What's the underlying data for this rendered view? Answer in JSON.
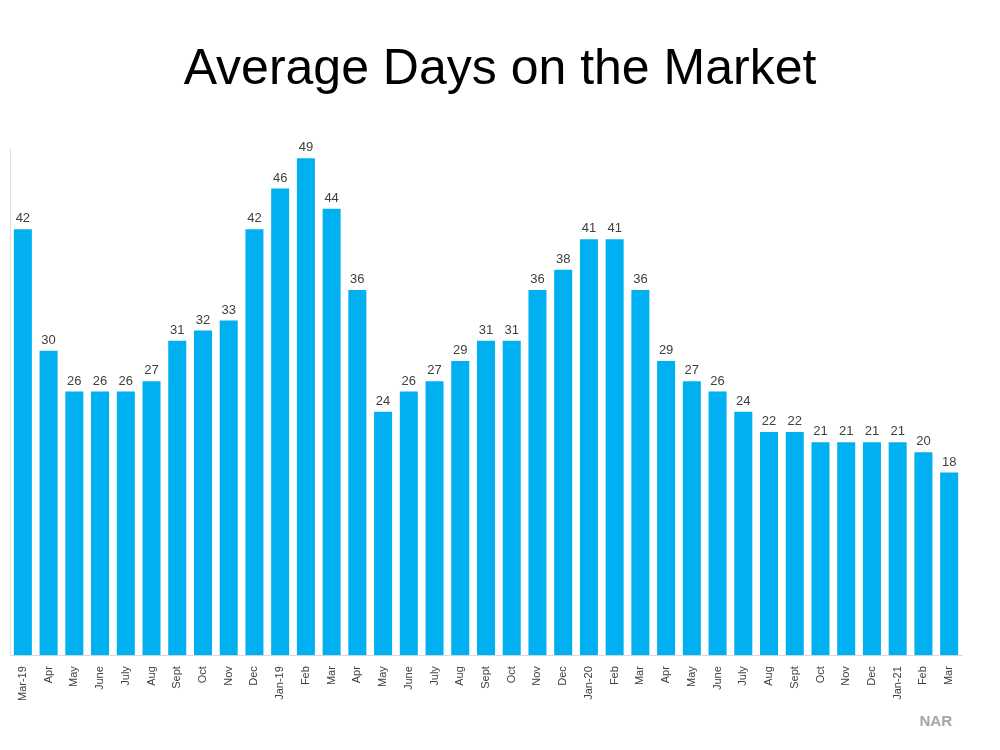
{
  "chart_data": {
    "type": "bar",
    "title": "Average Days on the Market",
    "categories": [
      "Mar-19",
      "Apr",
      "May",
      "June",
      "July",
      "Aug",
      "Sept",
      "Oct",
      "Nov",
      "Dec",
      "Jan-19",
      "Feb",
      "Mar",
      "Apr",
      "May",
      "June",
      "July",
      "Aug",
      "Sept",
      "Oct",
      "Nov",
      "Dec",
      "Jan-20",
      "Feb",
      "Mar",
      "Apr",
      "May",
      "June",
      "July",
      "Aug",
      "Sept",
      "Oct",
      "Nov",
      "Dec",
      "Jan-21",
      "Feb",
      "Mar"
    ],
    "values": [
      42,
      30,
      26,
      26,
      26,
      27,
      31,
      32,
      33,
      42,
      46,
      49,
      44,
      36,
      24,
      26,
      27,
      29,
      31,
      31,
      36,
      38,
      41,
      41,
      36,
      29,
      27,
      26,
      24,
      22,
      22,
      21,
      21,
      21,
      21,
      20,
      18
    ],
    "color": "#00b0f0",
    "ylim": [
      0,
      50
    ],
    "grid": false,
    "legend": false,
    "data_labels": true,
    "tick_labels": "x",
    "annotations": [
      "NAR"
    ]
  }
}
